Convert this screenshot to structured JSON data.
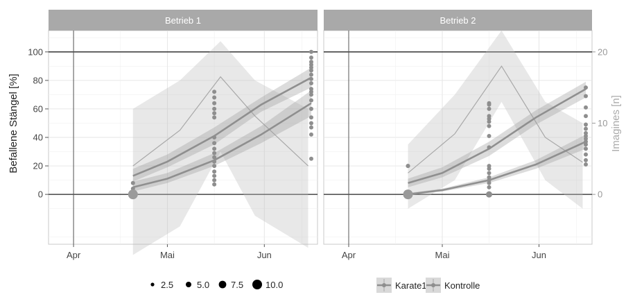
{
  "chart_data": {
    "type": "scatter",
    "ylabel_left": "Befallene Stängel [%]",
    "ylabel_right": "Imagines [n]",
    "x_ticks": [
      "Apr",
      "Mai",
      "Jun"
    ],
    "y_left_ticks": [
      0,
      20,
      40,
      60,
      80,
      100
    ],
    "y_right_ticks": [
      0,
      10,
      20
    ],
    "y_left_range": [
      -35,
      115
    ],
    "y_right_range": [
      -7,
      23
    ],
    "x_range": [
      -8,
      78
    ],
    "x_tick_days": [
      0,
      30,
      61
    ],
    "x_unit": "days since 1 Apr",
    "grid": true,
    "facets": [
      {
        "label": "Betrieb 1",
        "imagines": {
          "x": [
            19,
            34,
            47,
            58,
            75
          ],
          "y": [
            4,
            9,
            16.5,
            11,
            4
          ],
          "band": [
            [
              19,
              -8.5,
              12
            ],
            [
              34,
              -4.5,
              16
            ],
            [
              47,
              6,
              21.5
            ],
            [
              58,
              -3,
              16
            ],
            [
              75,
              -7.5,
              12
            ]
          ]
        },
        "series": [
          {
            "name": "Karate1",
            "x": [
              19,
              30,
              45,
              60,
              76
            ],
            "y": [
              13,
              23,
              41,
              63,
              82
            ],
            "lo": [
              9,
              19,
              35,
              58,
              75
            ],
            "hi": [
              18,
              28,
              47,
              68,
              89
            ]
          },
          {
            "name": "Kontrolle",
            "x": [
              19,
              30,
              45,
              60,
              76
            ],
            "y": [
              5,
              11,
              24,
              42,
              64
            ],
            "lo": [
              2,
              8,
              20,
              36,
              55
            ],
            "hi": [
              9,
              15,
              29,
              48,
              73
            ]
          }
        ],
        "points_x": [
          19,
          19,
          19,
          19,
          19,
          19,
          45,
          45,
          45,
          45,
          45,
          45,
          45,
          45,
          45,
          45,
          45,
          45,
          45,
          45,
          45,
          45,
          45,
          76,
          76,
          76,
          76,
          76,
          76,
          76,
          76,
          76,
          76,
          76,
          76,
          76,
          76,
          76,
          76,
          76,
          76,
          76
        ],
        "points_y": [
          0,
          0,
          0,
          0,
          4,
          8,
          7,
          10,
          13,
          16,
          20,
          23,
          26,
          29,
          32,
          36,
          40,
          54,
          57,
          60,
          64,
          68,
          72,
          25,
          42,
          47,
          50,
          54,
          60,
          66,
          70,
          72,
          74,
          78,
          81,
          84,
          87,
          89,
          91,
          93,
          96,
          100
        ]
      },
      {
        "label": "Betrieb 2",
        "imagines": {
          "x": [
            19,
            34,
            49,
            63,
            75
          ],
          "y": [
            3,
            8.5,
            18,
            8,
            4.5
          ],
          "band": [
            [
              19,
              -2,
              7
            ],
            [
              34,
              2,
              14
            ],
            [
              49,
              13,
              23
            ],
            [
              63,
              2,
              13
            ],
            [
              75,
              -2,
              10
            ]
          ]
        },
        "series": [
          {
            "name": "Karate1",
            "x": [
              19,
              30,
              45,
              60,
              76
            ],
            "y": [
              8,
              15,
              32,
              54,
              74
            ],
            "lo": [
              5,
              12,
              27,
              49,
              68
            ],
            "hi": [
              11,
              19,
              37,
              59,
              79
            ]
          },
          {
            "name": "Kontrolle",
            "x": [
              19,
              30,
              45,
              60,
              76
            ],
            "y": [
              0,
              3,
              10,
              21,
              37
            ],
            "lo": [
              0,
              2,
              8,
              18,
              32
            ],
            "hi": [
              1,
              4,
              12,
              24,
              42
            ]
          }
        ],
        "points_x": [
          19,
          19,
          19,
          19,
          19,
          45,
          45,
          45,
          45,
          45,
          45,
          45,
          45,
          45,
          45,
          45,
          45,
          45,
          45,
          45,
          45,
          45,
          76,
          76,
          76,
          76,
          76,
          76,
          76,
          76,
          76,
          76,
          76,
          76,
          76,
          76,
          76
        ],
        "points_y": [
          0,
          0,
          0,
          20,
          20,
          0,
          5,
          8,
          10,
          12,
          15,
          18,
          20,
          33,
          41,
          48,
          51,
          53,
          55,
          60,
          63,
          64,
          21,
          24,
          28,
          32,
          35,
          37,
          39,
          41,
          43,
          46,
          49,
          55,
          61,
          69,
          75
        ]
      }
    ],
    "size_legend": {
      "values": [
        "2.5",
        "5.0",
        "7.5",
        "10.0"
      ]
    },
    "color_legend": {
      "entries": [
        "Karate1",
        "Kontrolle"
      ]
    }
  }
}
